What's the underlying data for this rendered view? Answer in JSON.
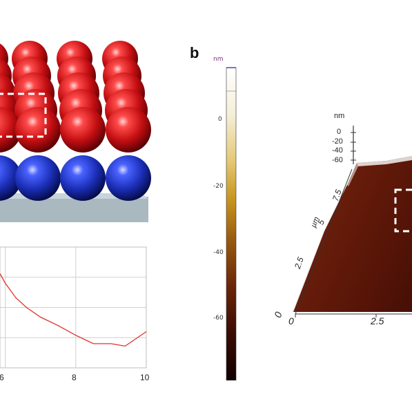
{
  "panels": {
    "b_label": "b"
  },
  "colorbar": {
    "unit": "nm",
    "ticks": [
      "0",
      "-20",
      "-40",
      "-60"
    ]
  },
  "topography3d": {
    "z_unit": "nm",
    "z_ticks": [
      "0",
      "-20",
      "-40",
      "-60"
    ],
    "y_unit": "µm",
    "y_ticks": [
      "7.5",
      "5",
      "2.5",
      "0"
    ],
    "x_ticks": [
      "0",
      "2.5"
    ]
  },
  "chart_data": {
    "type": "line",
    "title": "",
    "xlabel": "",
    "ylabel": "",
    "xlim": [
      5.85,
      10
    ],
    "x_ticks": [
      "6",
      "8",
      "10"
    ],
    "grid": true,
    "series": [
      {
        "color": "#e0302a",
        "x": [
          5.85,
          6.0,
          6.3,
          6.6,
          7.0,
          7.5,
          8.0,
          8.5,
          9.0,
          9.4,
          9.7,
          10.0
        ],
        "y": [
          0.78,
          0.7,
          0.58,
          0.5,
          0.42,
          0.35,
          0.27,
          0.2,
          0.2,
          0.18,
          0.24,
          0.3
        ]
      }
    ]
  }
}
